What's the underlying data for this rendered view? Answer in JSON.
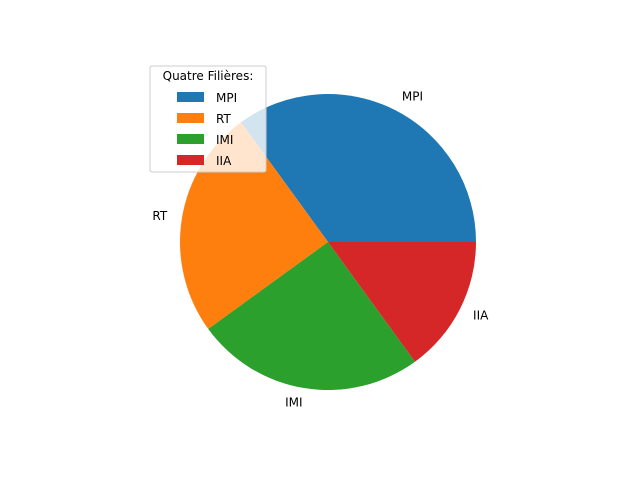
{
  "chart_data": {
    "type": "pie",
    "categories": [
      "MPI",
      "RT",
      "IMI",
      "IIA"
    ],
    "values": [
      35,
      25,
      25,
      15
    ],
    "colors": [
      "#1f77b4",
      "#ff7f0e",
      "#2ca02c",
      "#d62728"
    ],
    "start_angle_deg": 0,
    "direction": "counterclockwise",
    "legend": {
      "title": "Quatre Filières:",
      "entries": [
        "MPI",
        "RT",
        "IMI",
        "IIA"
      ],
      "placement": "upper-left"
    }
  }
}
